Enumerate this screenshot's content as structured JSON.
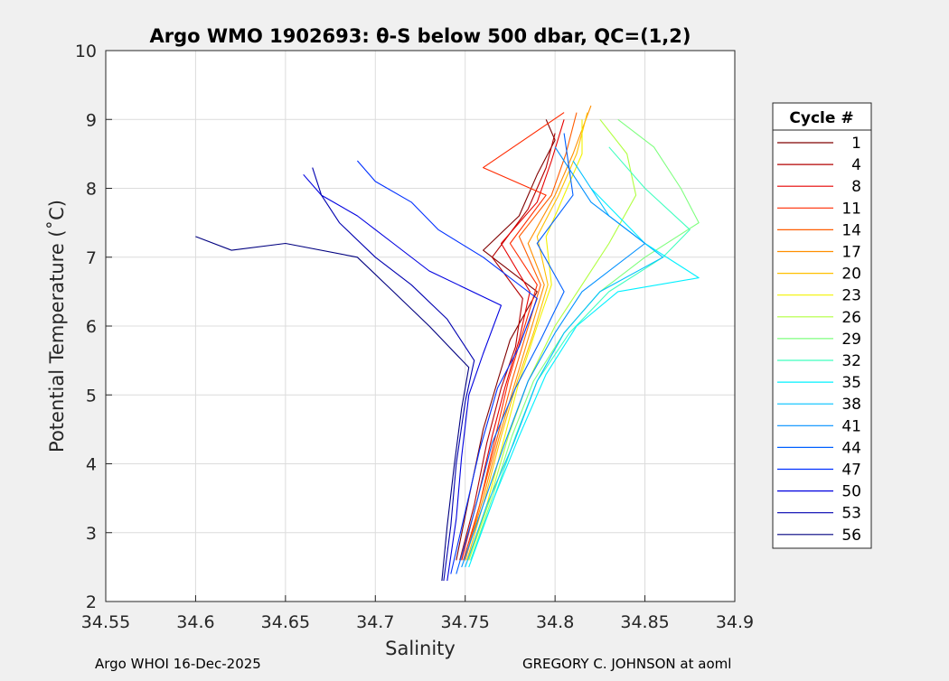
{
  "chart_data": {
    "type": "line",
    "title": "Argo WMO 1902693: θ-S below 500 dbar,  QC=(1,2)",
    "xlabel": "Salinity",
    "ylabel": "Potential Temperature (˚C)",
    "xlim": [
      34.55,
      34.9
    ],
    "ylim": [
      2,
      10
    ],
    "xticks": [
      "34.55",
      "34.6",
      "34.65",
      "34.7",
      "34.75",
      "34.8",
      "34.85",
      "34.9"
    ],
    "yticks": [
      "2",
      "3",
      "4",
      "5",
      "6",
      "7",
      "8",
      "9",
      "10"
    ],
    "grid": true,
    "legend": {
      "title": "Cycle #",
      "placement": "right-outside",
      "entries": [
        {
          "label": "1",
          "color": "#800000"
        },
        {
          "label": "4",
          "color": "#b30000"
        },
        {
          "label": "8",
          "color": "#e60000"
        },
        {
          "label": "11",
          "color": "#ff2a00"
        },
        {
          "label": "14",
          "color": "#ff5c00"
        },
        {
          "label": "17",
          "color": "#ff8f00"
        },
        {
          "label": "20",
          "color": "#ffc000"
        },
        {
          "label": "23",
          "color": "#f2f200"
        },
        {
          "label": "26",
          "color": "#b0ff3f"
        },
        {
          "label": "29",
          "color": "#7fff7f"
        },
        {
          "label": "32",
          "color": "#3fffbf"
        },
        {
          "label": "35",
          "color": "#00f0ff"
        },
        {
          "label": "38",
          "color": "#00c0ff"
        },
        {
          "label": "41",
          "color": "#0090ff"
        },
        {
          "label": "44",
          "color": "#0060ff"
        },
        {
          "label": "47",
          "color": "#0030ff"
        },
        {
          "label": "50",
          "color": "#0000e0"
        },
        {
          "label": "53",
          "color": "#0000b0"
        },
        {
          "label": "56",
          "color": "#000080"
        }
      ]
    },
    "series": [
      {
        "name": "1",
        "color": "#800000",
        "x": [
          34.745,
          34.752,
          34.76,
          34.768,
          34.775,
          34.79,
          34.76,
          34.78,
          34.79,
          34.8,
          34.795
        ],
        "y": [
          2.6,
          3.5,
          4.5,
          5.2,
          5.8,
          6.5,
          7.1,
          7.6,
          8.2,
          8.7,
          9.0
        ]
      },
      {
        "name": "4",
        "color": "#b30000",
        "x": [
          34.747,
          34.755,
          34.762,
          34.77,
          34.778,
          34.782,
          34.765,
          34.785,
          34.795,
          34.8
        ],
        "y": [
          2.6,
          3.4,
          4.3,
          5.1,
          5.7,
          6.4,
          7.0,
          7.7,
          8.3,
          8.8
        ]
      },
      {
        "name": "8",
        "color": "#e60000",
        "x": [
          34.748,
          34.757,
          34.765,
          34.772,
          34.78,
          34.786,
          34.77,
          34.79,
          34.798,
          34.805
        ],
        "y": [
          2.6,
          3.5,
          4.4,
          5.1,
          5.8,
          6.5,
          7.2,
          7.8,
          8.4,
          9.0
        ]
      },
      {
        "name": "11",
        "color": "#ff2a00",
        "x": [
          34.749,
          34.758,
          34.766,
          34.774,
          34.782,
          34.79,
          34.775,
          34.795,
          34.76,
          34.805
        ],
        "y": [
          2.6,
          3.4,
          4.3,
          5.2,
          5.9,
          6.6,
          7.2,
          7.9,
          8.3,
          9.1
        ]
      },
      {
        "name": "14",
        "color": "#ff5c00",
        "x": [
          34.75,
          34.759,
          34.768,
          34.776,
          34.784,
          34.792,
          34.78,
          34.798,
          34.806,
          34.812
        ],
        "y": [
          2.6,
          3.5,
          4.4,
          5.2,
          5.9,
          6.6,
          7.3,
          7.9,
          8.5,
          9.1
        ]
      },
      {
        "name": "17",
        "color": "#ff8f00",
        "x": [
          34.75,
          34.76,
          34.769,
          34.778,
          34.786,
          34.794,
          34.785,
          34.8,
          34.81,
          34.82
        ],
        "y": [
          2.6,
          3.5,
          4.4,
          5.2,
          5.9,
          6.6,
          7.2,
          7.9,
          8.5,
          9.2
        ]
      },
      {
        "name": "20",
        "color": "#ffc000",
        "x": [
          34.751,
          34.761,
          34.77,
          34.779,
          34.788,
          34.796,
          34.79,
          34.802,
          34.812,
          34.818
        ],
        "y": [
          2.6,
          3.5,
          4.4,
          5.2,
          5.9,
          6.6,
          7.3,
          7.9,
          8.5,
          9.1
        ]
      },
      {
        "name": "23",
        "color": "#f2f200",
        "x": [
          34.752,
          34.762,
          34.772,
          34.78,
          34.79,
          34.798,
          34.795,
          34.805,
          34.815,
          34.815
        ],
        "y": [
          2.6,
          3.4,
          4.4,
          5.2,
          6.0,
          6.6,
          7.3,
          7.9,
          8.5,
          9.0
        ]
      },
      {
        "name": "26",
        "color": "#b0ff3f",
        "x": [
          34.752,
          34.764,
          34.774,
          34.785,
          34.8,
          34.815,
          34.83,
          34.845,
          34.84,
          34.825
        ],
        "y": [
          2.6,
          3.5,
          4.4,
          5.2,
          6.0,
          6.6,
          7.2,
          7.9,
          8.5,
          9.0
        ]
      },
      {
        "name": "29",
        "color": "#7fff7f",
        "x": [
          34.753,
          34.765,
          34.776,
          34.788,
          34.805,
          34.825,
          34.85,
          34.88,
          34.87,
          34.855,
          34.835
        ],
        "y": [
          2.6,
          3.5,
          4.4,
          5.2,
          5.9,
          6.5,
          7.0,
          7.5,
          8.0,
          8.6,
          9.0
        ]
      },
      {
        "name": "32",
        "color": "#3fffbf",
        "x": [
          34.753,
          34.766,
          34.778,
          34.79,
          34.808,
          34.83,
          34.86,
          34.875,
          34.85,
          34.83
        ],
        "y": [
          2.6,
          3.5,
          4.4,
          5.2,
          5.9,
          6.5,
          7.0,
          7.4,
          8.0,
          8.6
        ]
      },
      {
        "name": "35",
        "color": "#00f0ff",
        "x": [
          34.752,
          34.766,
          34.78,
          34.795,
          34.812,
          34.835,
          34.88,
          34.85,
          34.82
        ],
        "y": [
          2.5,
          3.5,
          4.4,
          5.3,
          6.0,
          6.5,
          6.7,
          7.2,
          8.0
        ]
      },
      {
        "name": "38",
        "color": "#00c0ff",
        "x": [
          34.75,
          34.762,
          34.777,
          34.79,
          34.805,
          34.825,
          34.86,
          34.83,
          34.81
        ],
        "y": [
          2.5,
          3.4,
          4.3,
          5.2,
          5.9,
          6.5,
          7.0,
          7.6,
          8.4
        ]
      },
      {
        "name": "41",
        "color": "#0090ff",
        "x": [
          34.748,
          34.76,
          34.772,
          34.785,
          34.8,
          34.815,
          34.85,
          34.82,
          34.8
        ],
        "y": [
          2.5,
          3.4,
          4.3,
          5.2,
          5.9,
          6.5,
          7.2,
          7.8,
          8.6
        ]
      },
      {
        "name": "44",
        "color": "#0060ff",
        "x": [
          34.745,
          34.755,
          34.765,
          34.778,
          34.792,
          34.805,
          34.79,
          34.81,
          34.805
        ],
        "y": [
          2.4,
          3.3,
          4.3,
          5.1,
          5.8,
          6.5,
          7.2,
          7.9,
          8.8
        ]
      },
      {
        "name": "47",
        "color": "#0030ff",
        "x": [
          34.742,
          34.75,
          34.758,
          34.768,
          34.78,
          34.79,
          34.76,
          34.735,
          34.72,
          34.7,
          34.69
        ],
        "y": [
          2.4,
          3.3,
          4.2,
          5.1,
          5.7,
          6.4,
          7.0,
          7.4,
          7.8,
          8.1,
          8.4
        ]
      },
      {
        "name": "50",
        "color": "#0000e0",
        "x": [
          34.74,
          34.745,
          34.748,
          34.752,
          34.76,
          34.77,
          34.73,
          34.71,
          34.69,
          34.67,
          34.66
        ],
        "y": [
          2.3,
          3.2,
          4.1,
          5.0,
          5.6,
          6.3,
          6.8,
          7.2,
          7.6,
          7.9,
          8.2
        ]
      },
      {
        "name": "53",
        "color": "#0000b0",
        "x": [
          34.738,
          34.742,
          34.745,
          34.75,
          34.755,
          34.74,
          34.72,
          34.7,
          34.68,
          34.67,
          34.665
        ],
        "y": [
          2.3,
          3.1,
          4.0,
          4.9,
          5.5,
          6.1,
          6.6,
          7.0,
          7.5,
          7.9,
          8.3
        ]
      },
      {
        "name": "56",
        "color": "#000080",
        "x": [
          34.737,
          34.74,
          34.744,
          34.748,
          34.752,
          34.73,
          34.71,
          34.69,
          34.65,
          34.62,
          34.6
        ],
        "y": [
          2.3,
          3.1,
          4.0,
          4.8,
          5.4,
          6.0,
          6.5,
          7.0,
          7.2,
          7.1,
          7.3
        ]
      }
    ]
  },
  "footer": {
    "left": "Argo WHOI 16-Dec-2025",
    "right": "GREGORY C. JOHNSON at aoml"
  }
}
